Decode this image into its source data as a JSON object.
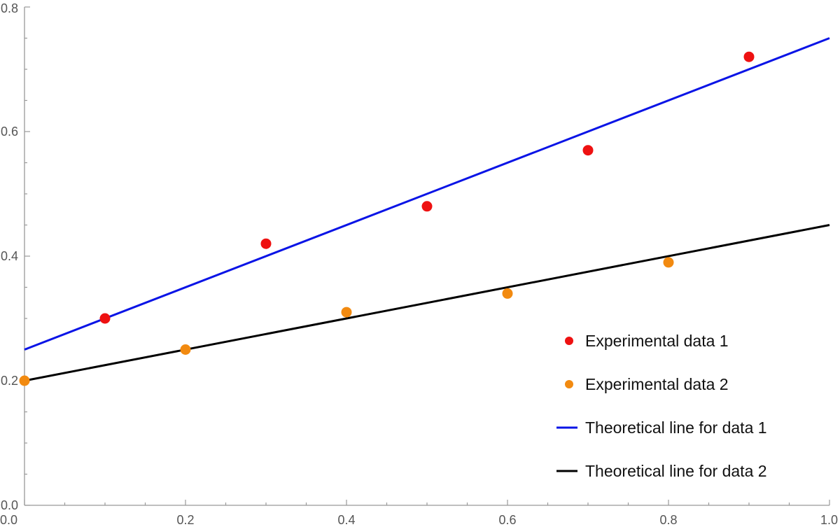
{
  "chart_data": {
    "type": "scatter",
    "title": "",
    "xlabel": "",
    "ylabel": "",
    "xlim": [
      0,
      1
    ],
    "ylim": [
      0,
      0.8
    ],
    "grid": false,
    "legend_position": "bottom-right",
    "x_ticks": [
      0.0,
      0.2,
      0.4,
      0.6,
      0.8,
      1.0
    ],
    "x_tick_labels": [
      "0.0",
      "0.2",
      "0.4",
      "0.6",
      "0.8",
      "1.0"
    ],
    "y_ticks": [
      0.0,
      0.2,
      0.4,
      0.6,
      0.8
    ],
    "y_tick_labels": [
      "0.0",
      "0.2",
      "0.4",
      "0.6",
      "0.8"
    ],
    "series": [
      {
        "name": "Experimental data 1",
        "kind": "points",
        "color": "#ee1111",
        "x": [
          0.1,
          0.3,
          0.5,
          0.7,
          0.9
        ],
        "y": [
          0.3,
          0.42,
          0.48,
          0.57,
          0.72
        ]
      },
      {
        "name": "Experimental data 2",
        "kind": "points",
        "color": "#f28a10",
        "x": [
          0.0,
          0.2,
          0.4,
          0.6,
          0.8
        ],
        "y": [
          0.2,
          0.25,
          0.31,
          0.34,
          0.39
        ]
      },
      {
        "name": "Theoretical line for data 1",
        "kind": "line",
        "color": "#0a14e6",
        "x": [
          0.0,
          1.0
        ],
        "y": [
          0.25,
          0.75
        ]
      },
      {
        "name": "Theoretical line for data 2",
        "kind": "line",
        "color": "#000000",
        "x": [
          0.0,
          1.0
        ],
        "y": [
          0.2,
          0.45
        ]
      }
    ]
  }
}
